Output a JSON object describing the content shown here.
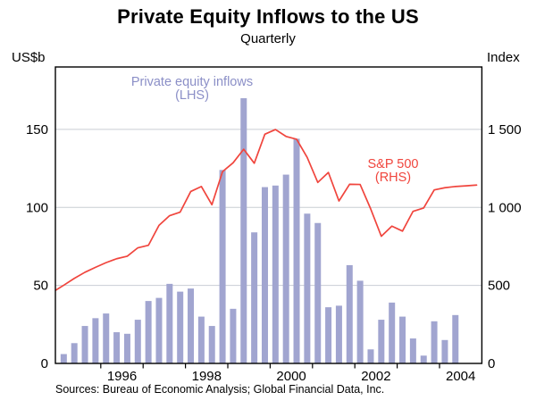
{
  "title": "Private Equity Inflows to the US",
  "subtitle": "Quarterly",
  "axes": {
    "left_unit": "US$b",
    "right_unit": "Index",
    "left_ticks": [
      0,
      50,
      100,
      150
    ],
    "right_tick_labels": [
      "0",
      "500",
      "1 000",
      "1 500"
    ],
    "gridline_values": [
      50,
      100,
      150
    ],
    "year_ticks": [
      1996,
      1997,
      1998,
      1999,
      2000,
      2001,
      2002,
      2003,
      2004
    ],
    "year_labels": [
      "1996",
      "1998",
      "2000",
      "2002",
      "2004"
    ]
  },
  "legend": {
    "bars_label": "Private equity inflows",
    "bars_axis_note": "(LHS)",
    "line_label": "S&P 500",
    "line_axis_note": "(RHS)"
  },
  "source_note": "Sources: Bureau of Economic Analysis; Global Financial Data, Inc.",
  "colors": {
    "bar_fill": "#a1a5d0",
    "line_stroke": "#f0453d",
    "bars_label_text": "#8b8fc7",
    "line_label_text": "#f0453d",
    "grid": "#c9cdd4",
    "axis_frame": "#000000",
    "text": "#000000",
    "background": "#ffffff"
  },
  "chart_data": {
    "type": "bar+line dual-axis",
    "title": "Private Equity Inflows to the US",
    "subtitle": "Quarterly",
    "x_axis_start_yearfrac": 1994.928,
    "x_axis_end_yearfrac": 2005.0,
    "ylim_left": [
      0,
      190
    ],
    "ylim_right": [
      0,
      1900
    ],
    "grid": "horizontal gridlines at left 50/100/150 (right 500/1000/1500)",
    "bar_series": {
      "name": "Private equity inflows (LHS)",
      "unit": "US$b",
      "quarters": [
        "1995Q1",
        "1995Q2",
        "1995Q3",
        "1995Q4",
        "1996Q1",
        "1996Q2",
        "1996Q3",
        "1996Q4",
        "1997Q1",
        "1997Q2",
        "1997Q3",
        "1997Q4",
        "1998Q1",
        "1998Q2",
        "1998Q3",
        "1998Q4",
        "1999Q1",
        "1999Q2",
        "1999Q3",
        "1999Q4",
        "2000Q1",
        "2000Q2",
        "2000Q3",
        "2000Q4",
        "2001Q1",
        "2001Q2",
        "2001Q3",
        "2001Q4",
        "2002Q1",
        "2002Q2",
        "2002Q3",
        "2002Q4",
        "2003Q1",
        "2003Q2",
        "2003Q3",
        "2003Q4",
        "2004Q1",
        "2004Q2"
      ],
      "values": [
        6,
        13,
        24,
        29,
        32,
        20,
        19,
        28,
        40,
        42,
        51,
        46,
        48,
        30,
        24,
        124,
        35,
        170,
        84,
        113,
        114,
        121,
        144,
        96,
        90,
        36,
        37,
        63,
        53,
        9,
        28,
        39,
        30,
        16,
        5,
        27,
        15,
        31
      ]
    },
    "line_series": {
      "name": "S&P 500 (RHS)",
      "unit": "index points",
      "quarters": [
        "1994Q4",
        "1995Q1",
        "1995Q2",
        "1995Q3",
        "1995Q4",
        "1996Q1",
        "1996Q2",
        "1996Q3",
        "1996Q4",
        "1997Q1",
        "1997Q2",
        "1997Q3",
        "1997Q4",
        "1998Q1",
        "1998Q2",
        "1998Q3",
        "1998Q4",
        "1999Q1",
        "1999Q2",
        "1999Q3",
        "1999Q4",
        "2000Q1",
        "2000Q2",
        "2000Q3",
        "2000Q4",
        "2001Q1",
        "2001Q2",
        "2001Q3",
        "2001Q4",
        "2002Q1",
        "2002Q2",
        "2002Q3",
        "2002Q4",
        "2003Q1",
        "2003Q2",
        "2003Q3",
        "2003Q4",
        "2004Q1",
        "2004Q2",
        "2004Q3",
        "2004Q4"
      ],
      "values": [
        459,
        501,
        545,
        584,
        616,
        646,
        671,
        687,
        741,
        757,
        885,
        947,
        970,
        1102,
        1134,
        1017,
        1229,
        1286,
        1373,
        1283,
        1469,
        1499,
        1455,
        1437,
        1320,
        1160,
        1224,
        1041,
        1148,
        1147,
        990,
        815,
        880,
        848,
        975,
        996,
        1112,
        1126,
        1134,
        1138,
        1143
      ]
    }
  }
}
